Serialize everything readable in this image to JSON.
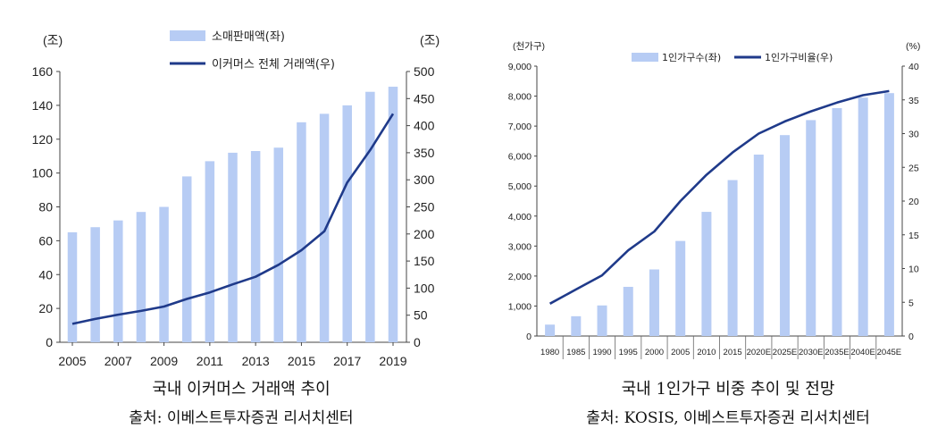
{
  "chart_data": [
    {
      "type": "bar+line",
      "caption": "국내 이커머스 거래액 추이",
      "source": "출처: 이베스트투자증권 리서치센터",
      "left_unit": "(조)",
      "right_unit": "(조)",
      "legend_bar": "소매판매액(좌)",
      "legend_line": "이커머스 전체 거래액(우)",
      "years": [
        2005,
        2006,
        2007,
        2008,
        2009,
        2010,
        2011,
        2012,
        2013,
        2014,
        2015,
        2016,
        2017,
        2018,
        2019
      ],
      "x_tick_labels": [
        "2005",
        "2007",
        "2009",
        "2011",
        "2013",
        "2015",
        "2017",
        "2019"
      ],
      "bar_values": [
        65,
        68,
        72,
        77,
        80,
        98,
        107,
        112,
        113,
        115,
        130,
        135,
        140,
        148,
        151
      ],
      "line_values": [
        34,
        43,
        51,
        58,
        66,
        80,
        92,
        107,
        121,
        143,
        170,
        205,
        295,
        355,
        422
      ],
      "ylim_left": [
        0,
        160
      ],
      "ylim_right": [
        0,
        500
      ],
      "y_ticks_left": [
        "0",
        "20",
        "40",
        "60",
        "80",
        "100",
        "120",
        "140",
        "160"
      ],
      "y_ticks_right": [
        "0",
        "50",
        "100",
        "150",
        "200",
        "250",
        "300",
        "350",
        "400",
        "450",
        "500"
      ],
      "bar_color": "#b7ccf4",
      "line_color": "#1f3a8a"
    },
    {
      "type": "bar+line",
      "caption": "국내 1인가구 비중 추이 및 전망",
      "source": "출처: KOSIS, 이베스트투자증권 리서치센터",
      "left_unit": "(천가구)",
      "right_unit": "(%)",
      "legend_bar": "1인가구수(좌)",
      "legend_line": "1인가구비율(우)",
      "categories": [
        "1980",
        "1985",
        "1990",
        "1995",
        "2000",
        "2005",
        "2010",
        "2015",
        "2020E",
        "2025E",
        "2030E",
        "2035E",
        "2040E",
        "2045E"
      ],
      "bar_values": [
        380,
        660,
        1020,
        1640,
        2220,
        3170,
        4140,
        5200,
        6050,
        6700,
        7200,
        7600,
        7950,
        8100
      ],
      "line_values": [
        4.8,
        6.9,
        9.0,
        12.7,
        15.5,
        20.0,
        23.9,
        27.2,
        30.0,
        31.8,
        33.3,
        34.6,
        35.7,
        36.3
      ],
      "ylim_left": [
        0,
        9000
      ],
      "ylim_right": [
        0,
        40
      ],
      "y_ticks_left": [
        "0",
        "1,000",
        "2,000",
        "3,000",
        "4,000",
        "5,000",
        "6,000",
        "7,000",
        "8,000",
        "9,000"
      ],
      "y_ticks_right": [
        "0",
        "5",
        "10",
        "15",
        "20",
        "25",
        "30",
        "35",
        "40"
      ],
      "bar_color": "#b7ccf4",
      "line_color": "#1f3a8a"
    }
  ]
}
